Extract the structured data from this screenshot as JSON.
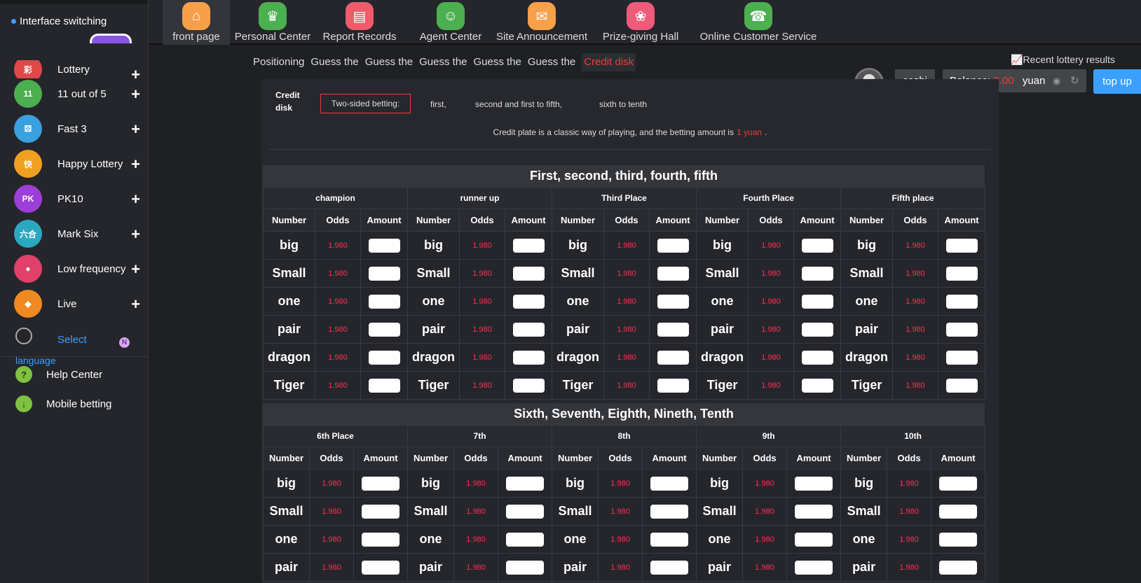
{
  "sidebar": {
    "interface_switching": "Interface switching",
    "items": [
      {
        "label": "Lottery",
        "icon": "lottery-icon",
        "color": "#e04848",
        "badge": "彩"
      },
      {
        "label": "11 out of 5",
        "icon": "eleven-five-icon",
        "color": "#4caf50",
        "badge": "11"
      },
      {
        "label": "Fast 3",
        "icon": "fast3-icon",
        "color": "#3aa0e0",
        "badge": "⚄"
      },
      {
        "label": "Happy Lottery",
        "icon": "happy-lottery-icon",
        "color": "#f0a020",
        "badge": "快"
      },
      {
        "label": "PK10",
        "icon": "pk10-icon",
        "color": "#9b3fd8",
        "badge": "PK"
      },
      {
        "label": "Mark Six",
        "icon": "mark-six-icon",
        "color": "#2aa8c0",
        "badge": "六合"
      },
      {
        "label": "Low frequency",
        "icon": "low-frequency-icon",
        "color": "#e0406a",
        "badge": "●"
      },
      {
        "label": "Live",
        "icon": "live-icon",
        "color": "#f08a20",
        "badge": "◆"
      }
    ],
    "lang_select": "Select",
    "lang_language": "language",
    "lang_badge": "N",
    "help_center": "Help Center",
    "mobile_betting": "Mobile betting"
  },
  "nav": [
    {
      "label": "front page",
      "icon": "home-icon",
      "color": "#f7a04a",
      "glyph": "⌂"
    },
    {
      "label": "Personal Center",
      "icon": "crown-icon",
      "color": "#4caf50",
      "glyph": "♛"
    },
    {
      "label": "Report Records",
      "icon": "report-icon",
      "color": "#ef5b6b",
      "glyph": "▤"
    },
    {
      "label": "Agent Center",
      "icon": "agent-icon",
      "color": "#4caf50",
      "glyph": "☺"
    },
    {
      "label": "Site Announcement",
      "icon": "mail-icon",
      "color": "#f7a04a",
      "glyph": "✉"
    },
    {
      "label": "Prize-giving Hall",
      "icon": "prize-icon",
      "color": "#ef5b7b",
      "glyph": "❀"
    },
    {
      "label": "Online Customer Service",
      "icon": "service-icon",
      "color": "#4caf50",
      "glyph": "☎"
    }
  ],
  "tabs": [
    "Positioning",
    "Guess the",
    "Guess the",
    "Guess the",
    "Guess the",
    "Guess the",
    "Credit disk"
  ],
  "recent_results": "Recent lottery results",
  "user": {
    "name": "ceshi",
    "balance_label": "Balance:",
    "balance": "0.00",
    "unit": "yuan",
    "top_up": "top up"
  },
  "panel": {
    "label": "Credit disk",
    "two_sided": "Two-sided betting:",
    "options": [
      "first,",
      "second and first to fifth,",
      "sixth to tenth"
    ],
    "desc_pre": "Credit plate is a classic way of playing, and the betting amount is",
    "desc_amount": "1 yuan",
    "desc_post": "."
  },
  "board1": {
    "title": "First, second, third, fourth, fifth",
    "places": [
      "champion",
      "runner up",
      "Third Place",
      "Fourth Place",
      "Fifth place"
    ],
    "rows": [
      "big",
      "Small",
      "one",
      "pair",
      "dragon",
      "Tiger"
    ]
  },
  "board2": {
    "title": "Sixth, Seventh, Eighth, Nineth, Tenth",
    "places": [
      "6th Place",
      "7th",
      "8th",
      "9th",
      "10th"
    ],
    "rows": [
      "big",
      "Small",
      "one",
      "pair"
    ]
  },
  "columns": {
    "number": "Number",
    "odds": "Odds",
    "amount": "Amount"
  },
  "odds": "1.980"
}
